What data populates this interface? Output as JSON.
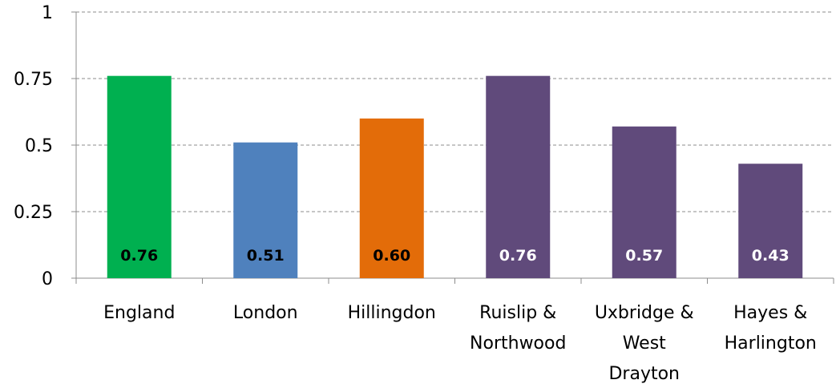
{
  "chart_data": {
    "type": "bar",
    "categories": [
      [
        "England"
      ],
      [
        "London"
      ],
      [
        "Hillingdon"
      ],
      [
        "Ruislip &",
        "Northwood"
      ],
      [
        "Uxbridge &",
        "West",
        "Drayton"
      ],
      [
        "Hayes &",
        "Harlington"
      ]
    ],
    "values": [
      0.76,
      0.51,
      0.6,
      0.76,
      0.57,
      0.43
    ],
    "data_labels": [
      "0.76",
      "0.51",
      "0.60",
      "0.76",
      "0.57",
      "0.43"
    ],
    "bar_colors": [
      "#00b050",
      "#4f81bd",
      "#e36c09",
      "#604a7b",
      "#604a7b",
      "#604a7b"
    ],
    "label_colors": [
      "#000000",
      "#000000",
      "#000000",
      "#ffffff",
      "#ffffff",
      "#ffffff"
    ],
    "yticks": [
      0,
      0.25,
      0.5,
      0.75,
      1
    ],
    "ytick_labels": [
      "0",
      "0.25",
      "0.5",
      "0.75",
      "1"
    ],
    "ylim": [
      0,
      1
    ],
    "grid": true,
    "title": "",
    "xlabel": "",
    "ylabel": ""
  }
}
